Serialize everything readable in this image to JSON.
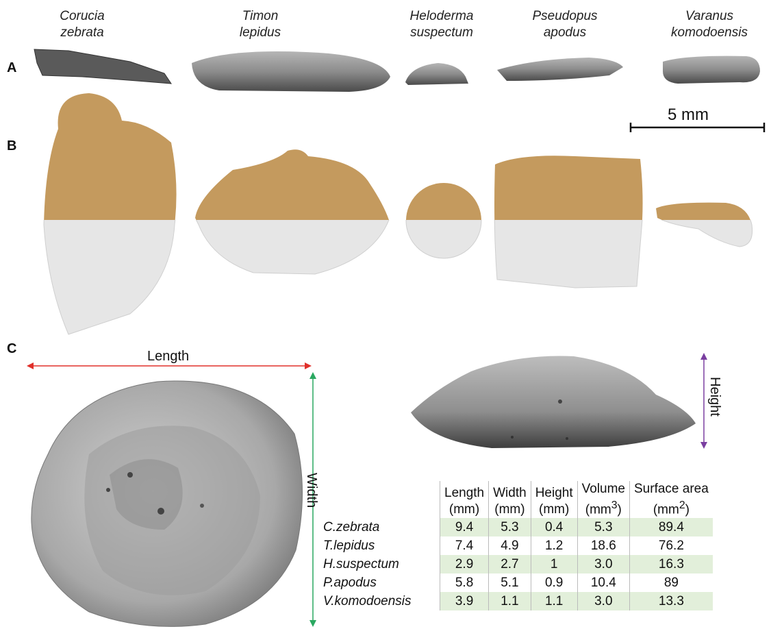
{
  "species_headers": [
    {
      "genus": "Corucia",
      "epithet": "zebrata"
    },
    {
      "genus": "Timon",
      "epithet": "lepidus"
    },
    {
      "genus": "Heloderma",
      "epithet": "suspectum"
    },
    {
      "genus": "Pseudopus",
      "epithet": "apodus"
    },
    {
      "genus": "Varanus",
      "epithet": "komodoensis"
    }
  ],
  "panels": {
    "a": "A",
    "b": "B",
    "c": "C"
  },
  "scale_bar": {
    "label": "5 mm"
  },
  "dimensions": {
    "length": "Length",
    "width": "Width",
    "height": "Height"
  },
  "colors": {
    "top_half": "#c49a5e",
    "bottom_half": "#e6e6e6",
    "scan_gray": "#8a8a8a",
    "length_arrow": "#e0302a",
    "width_arrow": "#2aa860",
    "height_arrow": "#7a3ea0",
    "row_shade": "#e2efda"
  },
  "table": {
    "headers": [
      {
        "name": "Length",
        "unit": "(mm)"
      },
      {
        "name": "Width",
        "unit": "(mm)"
      },
      {
        "name": "Height",
        "unit": "(mm)"
      },
      {
        "name": "Volume",
        "unit": "(mm",
        "sup": "3",
        "close": ")"
      },
      {
        "name": "Surface area",
        "unit": "(mm",
        "sup": "2",
        "close": ")"
      }
    ],
    "rows": [
      {
        "species": "C.zebrata",
        "values": [
          "9.4",
          "5.3",
          "0.4",
          "5.3",
          "89.4"
        ]
      },
      {
        "species": "T.lepidus",
        "values": [
          "7.4",
          "4.9",
          "1.2",
          "18.6",
          "76.2"
        ]
      },
      {
        "species": "H.suspectum",
        "values": [
          "2.9",
          "2.7",
          "1",
          "3.0",
          "16.3"
        ]
      },
      {
        "species": "P.apodus",
        "values": [
          "5.8",
          "5.1",
          "0.9",
          "10.4",
          "89"
        ]
      },
      {
        "species": "V.komodoensis",
        "values": [
          "3.9",
          "1.1",
          "1.1",
          "3.0",
          "13.3"
        ]
      }
    ]
  }
}
